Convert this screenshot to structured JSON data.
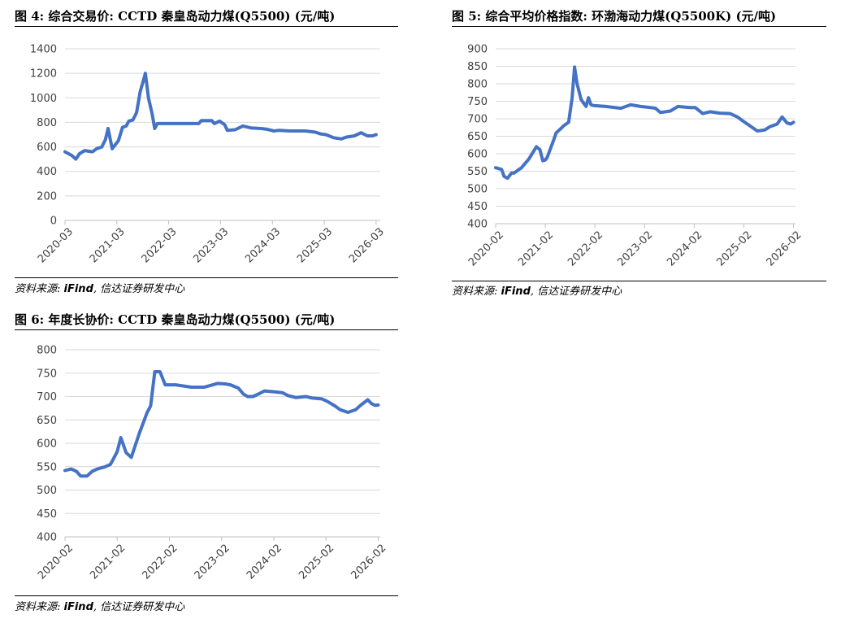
{
  "charts": [
    {
      "title": "图 4: 综合交易价: CCTD 秦皇岛动力煤(Q5500)   (元/吨)",
      "source_prefix": "资料来源: ",
      "source_brand": "iFind",
      "source_suffix": ", 信达证券研发中心"
    },
    {
      "title": "图 5: 综合平均价格指数: 环渤海动力煤(Q5500K) (元/吨)",
      "source_prefix": "资料来源: ",
      "source_brand": "iFind",
      "source_suffix": ", 信达证券研发中心"
    },
    {
      "title": "图 6: 年度长协价: CCTD 秦皇岛动力煤(Q5500)   (元/吨)",
      "source_prefix": "资料来源: ",
      "source_brand": "iFind",
      "source_suffix": ", 信达证券研发中心"
    }
  ],
  "chart_data": [
    {
      "type": "line",
      "title": "图 4: 综合交易价: CCTD 秦皇岛动力煤(Q5500)   (元/吨)",
      "xlabel": "",
      "ylabel": "",
      "ylim": [
        0,
        1400
      ],
      "yticks": [
        0,
        200,
        400,
        600,
        800,
        1000,
        1200,
        1400
      ],
      "xlim": [
        2020.17,
        2026.25
      ],
      "xticks": [
        "2020-03",
        "2021-03",
        "2022-03",
        "2023-03",
        "2024-03",
        "2025-03",
        "2026-03"
      ],
      "xtick_values": [
        2020.17,
        2021.17,
        2022.17,
        2023.17,
        2024.17,
        2025.17,
        2026.17
      ],
      "grid": true,
      "color": "#4472c4",
      "series": [
        {
          "x": [
            2020.17,
            2020.3,
            2020.38,
            2020.45,
            2020.55,
            2020.7,
            2020.78,
            2020.88,
            2020.95,
            2021.0,
            2021.08,
            2021.2,
            2021.28,
            2021.35,
            2021.4,
            2021.48,
            2021.55,
            2021.62,
            2021.68,
            2021.72,
            2021.78,
            2021.85,
            2021.9,
            2021.95,
            2022.0,
            2022.08,
            2022.2,
            2022.5,
            2022.75,
            2022.8,
            2023.0,
            2023.05,
            2023.15,
            2023.25,
            2023.3,
            2023.45,
            2023.6,
            2023.75,
            2023.95,
            2024.05,
            2024.2,
            2024.3,
            2024.5,
            2024.8,
            2025.0,
            2025.1,
            2025.2,
            2025.35,
            2025.5,
            2025.6,
            2025.75,
            2025.88,
            2026.0,
            2026.1,
            2026.17
          ],
          "y": [
            560,
            530,
            500,
            545,
            570,
            560,
            585,
            600,
            660,
            750,
            585,
            650,
            760,
            770,
            810,
            820,
            880,
            1050,
            1140,
            1200,
            1000,
            870,
            750,
            790,
            790,
            790,
            790,
            790,
            790,
            815,
            815,
            790,
            810,
            780,
            735,
            740,
            770,
            755,
            750,
            745,
            730,
            735,
            730,
            730,
            720,
            705,
            700,
            675,
            665,
            680,
            690,
            715,
            690,
            690,
            700
          ]
        }
      ]
    },
    {
      "type": "line",
      "title": "图 5: 综合平均价格指数: 环渤海动力煤(Q5500K) (元/吨)",
      "xlabel": "",
      "ylabel": "",
      "ylim": [
        400,
        900
      ],
      "yticks": [
        400,
        450,
        500,
        550,
        600,
        650,
        700,
        750,
        800,
        850,
        900
      ],
      "xlim": [
        2020.08,
        2026.12
      ],
      "xticks": [
        "2020-02",
        "2021-02",
        "2022-02",
        "2023-02",
        "2024-02",
        "2025-02",
        "2026-02"
      ],
      "xtick_values": [
        2020.08,
        2021.08,
        2022.08,
        2023.08,
        2024.08,
        2025.08,
        2026.08
      ],
      "grid": true,
      "color": "#4472c4",
      "series": [
        {
          "x": [
            2020.08,
            2020.2,
            2020.25,
            2020.32,
            2020.4,
            2020.45,
            2020.6,
            2020.75,
            2020.9,
            2020.97,
            2021.03,
            2021.08,
            2021.12,
            2021.25,
            2021.3,
            2021.38,
            2021.45,
            2021.55,
            2021.62,
            2021.67,
            2021.72,
            2021.8,
            2021.9,
            2021.95,
            2022.0,
            2022.05,
            2022.3,
            2022.6,
            2022.8,
            2023.0,
            2023.2,
            2023.3,
            2023.4,
            2023.6,
            2023.75,
            2023.9,
            2024.0,
            2024.1,
            2024.25,
            2024.4,
            2024.6,
            2024.8,
            2024.95,
            2025.05,
            2025.2,
            2025.35,
            2025.5,
            2025.6,
            2025.75,
            2025.85,
            2025.95,
            2026.02,
            2026.08
          ],
          "y": [
            560,
            555,
            535,
            530,
            545,
            545,
            560,
            585,
            620,
            612,
            580,
            582,
            590,
            640,
            660,
            670,
            680,
            690,
            760,
            848,
            800,
            755,
            735,
            760,
            740,
            738,
            735,
            730,
            740,
            735,
            732,
            730,
            718,
            722,
            735,
            733,
            732,
            732,
            715,
            720,
            716,
            715,
            705,
            695,
            680,
            665,
            668,
            677,
            685,
            705,
            688,
            685,
            690
          ]
        }
      ]
    },
    {
      "type": "line",
      "title": "图 6: 年度长协价: CCTD 秦皇岛动力煤(Q5500)   (元/吨)",
      "xlabel": "",
      "ylabel": "",
      "ylim": [
        400,
        800
      ],
      "yticks": [
        400,
        450,
        500,
        550,
        600,
        650,
        700,
        750,
        800
      ],
      "xlim": [
        2020.08,
        2026.12
      ],
      "xticks": [
        "2020-02",
        "2021-02",
        "2022-02",
        "2023-02",
        "2024-02",
        "2025-02",
        "2026-02"
      ],
      "xtick_values": [
        2020.08,
        2021.08,
        2022.08,
        2023.08,
        2024.08,
        2025.08,
        2026.08
      ],
      "grid": true,
      "color": "#4472c4",
      "series": [
        {
          "x": [
            2020.08,
            2020.2,
            2020.3,
            2020.38,
            2020.5,
            2020.6,
            2020.7,
            2020.85,
            2020.95,
            2021.0,
            2021.08,
            2021.15,
            2021.25,
            2021.35,
            2021.5,
            2021.65,
            2021.72,
            2021.8,
            2021.9,
            2022.0,
            2022.2,
            2022.5,
            2022.75,
            2023.0,
            2023.15,
            2023.25,
            2023.4,
            2023.5,
            2023.58,
            2023.68,
            2023.78,
            2023.9,
            2024.1,
            2024.25,
            2024.35,
            2024.5,
            2024.7,
            2024.8,
            2025.0,
            2025.1,
            2025.25,
            2025.35,
            2025.5,
            2025.65,
            2025.75,
            2025.88,
            2025.95,
            2026.02,
            2026.08
          ],
          "y": [
            542,
            545,
            540,
            530,
            530,
            540,
            545,
            550,
            555,
            565,
            582,
            612,
            580,
            570,
            620,
            665,
            680,
            753,
            753,
            725,
            725,
            720,
            720,
            728,
            727,
            725,
            718,
            705,
            700,
            700,
            705,
            712,
            710,
            708,
            702,
            698,
            700,
            697,
            695,
            690,
            680,
            672,
            666,
            672,
            682,
            693,
            685,
            681,
            682
          ]
        }
      ]
    }
  ]
}
